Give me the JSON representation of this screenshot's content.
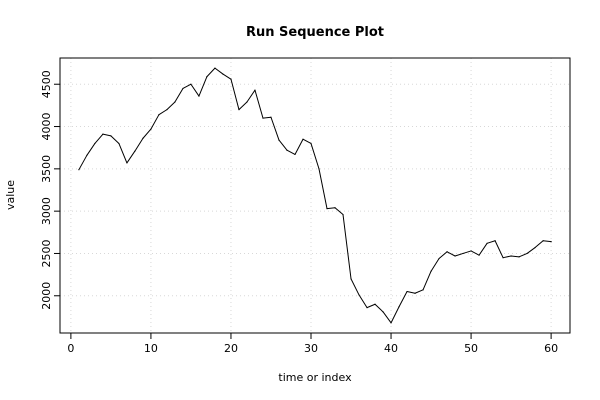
{
  "chart_data": {
    "type": "line",
    "title": "Run Sequence Plot",
    "xlabel": "time or index",
    "ylabel": "value",
    "xlim": [
      -1.36,
      62.36
    ],
    "ylim": [
      1560,
      4810
    ],
    "x_ticks": [
      0,
      10,
      20,
      30,
      40,
      50,
      60
    ],
    "y_ticks": [
      2000,
      2500,
      3000,
      3500,
      4000,
      4500
    ],
    "grid": true,
    "x": [
      1,
      2,
      3,
      4,
      5,
      6,
      7,
      8,
      9,
      10,
      11,
      12,
      13,
      14,
      15,
      16,
      17,
      18,
      19,
      20,
      21,
      22,
      23,
      24,
      25,
      26,
      27,
      28,
      29,
      30,
      31,
      32,
      33,
      34,
      35,
      36,
      37,
      38,
      39,
      40,
      41,
      42,
      43,
      44,
      45,
      46,
      47,
      48,
      49,
      50,
      51,
      52,
      53,
      54,
      55,
      56,
      57,
      58,
      59,
      60
    ],
    "series": [
      {
        "values": [
          3490,
          3660,
          3800,
          3910,
          3890,
          3800,
          3570,
          3710,
          3860,
          3970,
          4140,
          4200,
          4290,
          4450,
          4500,
          4360,
          4590,
          4690,
          4620,
          4560,
          4200,
          4290,
          4430,
          4100,
          4110,
          3840,
          3720,
          3670,
          3850,
          3800,
          3500,
          3030,
          3040,
          2960,
          2200,
          2010,
          1860,
          1900,
          1810,
          1680,
          1870,
          2050,
          2030,
          2070,
          2290,
          2440,
          2520,
          2470,
          2500,
          2530,
          2480,
          2620,
          2650,
          2450,
          2470,
          2460,
          2500,
          2570,
          2650,
          2640
        ]
      }
    ]
  }
}
